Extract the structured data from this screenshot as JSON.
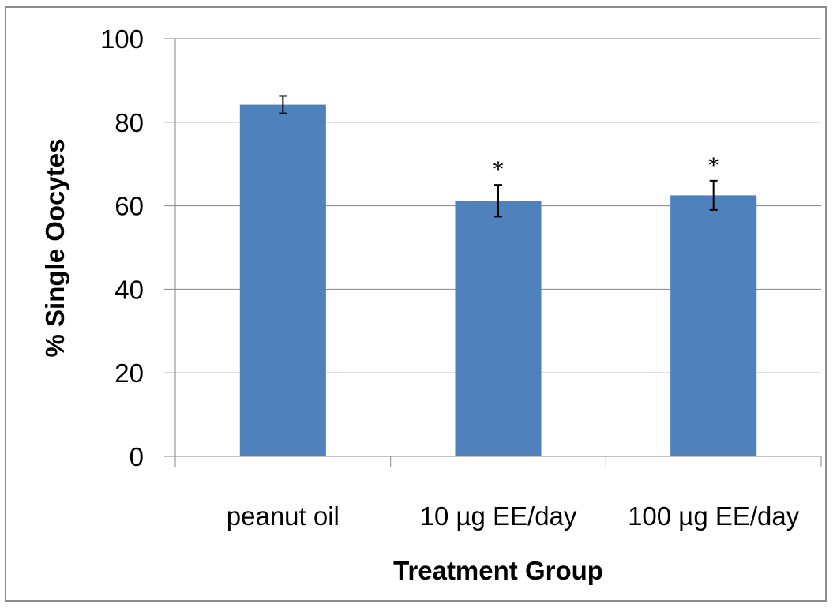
{
  "chart_data": {
    "type": "bar",
    "title": "",
    "xlabel": "Treatment Group",
    "ylabel": "% Single Oocytes",
    "ylim": [
      0,
      100
    ],
    "yticks": [
      0,
      20,
      40,
      60,
      80,
      100
    ],
    "grid": true,
    "legend": "none",
    "categories": [
      "peanut oil",
      "10 µg EE/day",
      "100 µg EE/day"
    ],
    "values": [
      84.2,
      61.2,
      62.5
    ],
    "errors": [
      2.1,
      3.8,
      3.5
    ],
    "annotations": [
      "",
      "*",
      "*"
    ],
    "bar_color": "#4f81bd",
    "grid_color": "#868686"
  }
}
